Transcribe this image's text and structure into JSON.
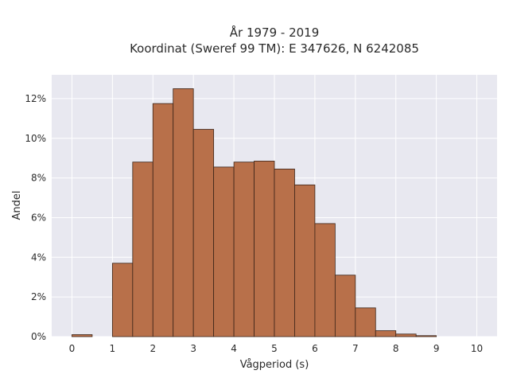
{
  "chart_data": {
    "type": "bar",
    "title_lines": [
      "År 1979 - 2019",
      "Koordinat (Sweref 99 TM): E 347626, N 6242085"
    ],
    "xlabel": "Vågperiod (s)",
    "ylabel": "Andel",
    "bin_width": 0.5,
    "bins": [
      {
        "start": 0.0,
        "value": 0.1
      },
      {
        "start": 0.5,
        "value": 0.0
      },
      {
        "start": 1.0,
        "value": 3.7
      },
      {
        "start": 1.5,
        "value": 8.8
      },
      {
        "start": 2.0,
        "value": 11.75
      },
      {
        "start": 2.5,
        "value": 12.5
      },
      {
        "start": 3.0,
        "value": 10.45
      },
      {
        "start": 3.5,
        "value": 8.55
      },
      {
        "start": 4.0,
        "value": 8.8
      },
      {
        "start": 4.5,
        "value": 8.85
      },
      {
        "start": 5.0,
        "value": 8.45
      },
      {
        "start": 5.5,
        "value": 7.65
      },
      {
        "start": 6.0,
        "value": 5.7
      },
      {
        "start": 6.5,
        "value": 3.1
      },
      {
        "start": 7.0,
        "value": 1.45
      },
      {
        "start": 7.5,
        "value": 0.3
      },
      {
        "start": 8.0,
        "value": 0.13
      },
      {
        "start": 8.5,
        "value": 0.05
      },
      {
        "start": 9.0,
        "value": 0.0
      },
      {
        "start": 9.5,
        "value": 0.0
      }
    ],
    "xlim": [
      -0.5,
      10.5
    ],
    "ylim": [
      0,
      13.2
    ],
    "xticks": [
      0,
      1,
      2,
      3,
      4,
      5,
      6,
      7,
      8,
      9,
      10
    ],
    "xtick_labels": [
      "0",
      "1",
      "2",
      "3",
      "4",
      "5",
      "6",
      "7",
      "8",
      "9",
      "10"
    ],
    "yticks": [
      0,
      2,
      4,
      6,
      8,
      10,
      12
    ],
    "ytick_labels": [
      "0%",
      "2%",
      "4%",
      "6%",
      "8%",
      "10%",
      "12%"
    ],
    "y_unit": "percent",
    "grid": true,
    "colors": {
      "bar_fill": "#b8704a",
      "bar_edge": "#3b2418",
      "plot_background": "#e8e8f0",
      "grid": "#ffffff"
    }
  }
}
